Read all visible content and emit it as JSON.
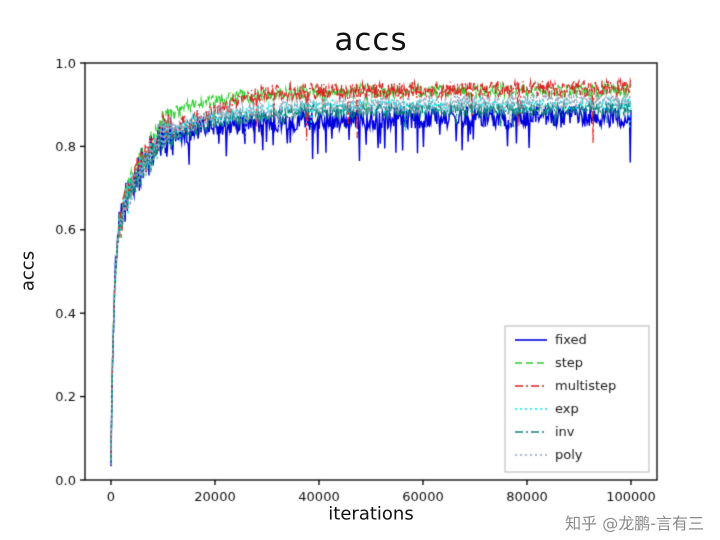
{
  "watermark": "知乎 @龙鹏-言有三",
  "chart_data": {
    "type": "line",
    "title": "accs",
    "xlabel": "iterations",
    "ylabel": "accs",
    "xlim": [
      -5000,
      105000
    ],
    "ylim": [
      0.0,
      1.0
    ],
    "xticks": [
      0,
      20000,
      40000,
      60000,
      80000,
      100000
    ],
    "yticks": [
      0.0,
      0.2,
      0.4,
      0.6,
      0.8,
      1.0
    ],
    "grid": false,
    "legend_position": "lower right",
    "background_color": "#ffffff",
    "axis_color": "#000000",
    "series": [
      {
        "name": "fixed",
        "color": "#0000dd",
        "dash": "solid",
        "linewidth": 1.4,
        "noise": 0.025,
        "spike_prob": 0.06,
        "spike_depth": 0.09,
        "keypoints": [
          [
            0,
            0.05
          ],
          [
            300,
            0.3
          ],
          [
            800,
            0.5
          ],
          [
            1500,
            0.6
          ],
          [
            3000,
            0.68
          ],
          [
            5000,
            0.73
          ],
          [
            7500,
            0.78
          ],
          [
            10000,
            0.82
          ],
          [
            20000,
            0.85
          ],
          [
            40000,
            0.865
          ],
          [
            70000,
            0.87
          ],
          [
            100000,
            0.87
          ]
        ]
      },
      {
        "name": "step",
        "color": "#2ecc2e",
        "dash": "dashed",
        "linewidth": 1.2,
        "noise": 0.016,
        "spike_prob": 0.012,
        "spike_depth": 0.06,
        "keypoints": [
          [
            0,
            0.05
          ],
          [
            300,
            0.3
          ],
          [
            800,
            0.5
          ],
          [
            1500,
            0.61
          ],
          [
            3000,
            0.69
          ],
          [
            5000,
            0.75
          ],
          [
            7500,
            0.8
          ],
          [
            10000,
            0.86
          ],
          [
            15000,
            0.9
          ],
          [
            25000,
            0.92
          ],
          [
            40000,
            0.93
          ],
          [
            100000,
            0.935
          ]
        ]
      },
      {
        "name": "multistep",
        "color": "#dd2222",
        "dash": "dashdot",
        "linewidth": 1.2,
        "noise": 0.02,
        "spike_prob": 0.02,
        "spike_depth": 0.13,
        "keypoints": [
          [
            0,
            0.05
          ],
          [
            300,
            0.29
          ],
          [
            800,
            0.49
          ],
          [
            1500,
            0.6
          ],
          [
            3000,
            0.68
          ],
          [
            5000,
            0.74
          ],
          [
            7500,
            0.79
          ],
          [
            10000,
            0.84
          ],
          [
            15000,
            0.86
          ],
          [
            30000,
            0.93
          ],
          [
            60000,
            0.935
          ],
          [
            100000,
            0.94
          ]
        ]
      },
      {
        "name": "exp",
        "color": "#00e5e5",
        "dash": "dotted",
        "linewidth": 1.3,
        "noise": 0.016,
        "spike_prob": 0.01,
        "spike_depth": 0.05,
        "keypoints": [
          [
            0,
            0.05
          ],
          [
            300,
            0.3
          ],
          [
            800,
            0.5
          ],
          [
            1500,
            0.6
          ],
          [
            3000,
            0.68
          ],
          [
            5000,
            0.73
          ],
          [
            7500,
            0.78
          ],
          [
            10000,
            0.83
          ],
          [
            20000,
            0.87
          ],
          [
            40000,
            0.895
          ],
          [
            100000,
            0.9
          ]
        ]
      },
      {
        "name": "inv",
        "color": "#128078",
        "dash": "dashdot",
        "linewidth": 1.3,
        "noise": 0.016,
        "spike_prob": 0.01,
        "spike_depth": 0.05,
        "keypoints": [
          [
            0,
            0.05
          ],
          [
            300,
            0.29
          ],
          [
            800,
            0.48
          ],
          [
            1500,
            0.59
          ],
          [
            3000,
            0.67
          ],
          [
            5000,
            0.72
          ],
          [
            7500,
            0.77
          ],
          [
            10000,
            0.82
          ],
          [
            20000,
            0.86
          ],
          [
            40000,
            0.885
          ],
          [
            100000,
            0.89
          ]
        ]
      },
      {
        "name": "poly",
        "color": "#99a3bb",
        "dash": "dotted",
        "linewidth": 1.3,
        "noise": 0.02,
        "spike_prob": 0.012,
        "spike_depth": 0.06,
        "keypoints": [
          [
            0,
            0.05
          ],
          [
            300,
            0.3
          ],
          [
            800,
            0.5
          ],
          [
            1500,
            0.6
          ],
          [
            3000,
            0.68
          ],
          [
            5000,
            0.73
          ],
          [
            7500,
            0.78
          ],
          [
            10000,
            0.83
          ],
          [
            20000,
            0.875
          ],
          [
            40000,
            0.9
          ],
          [
            100000,
            0.91
          ]
        ]
      }
    ]
  }
}
